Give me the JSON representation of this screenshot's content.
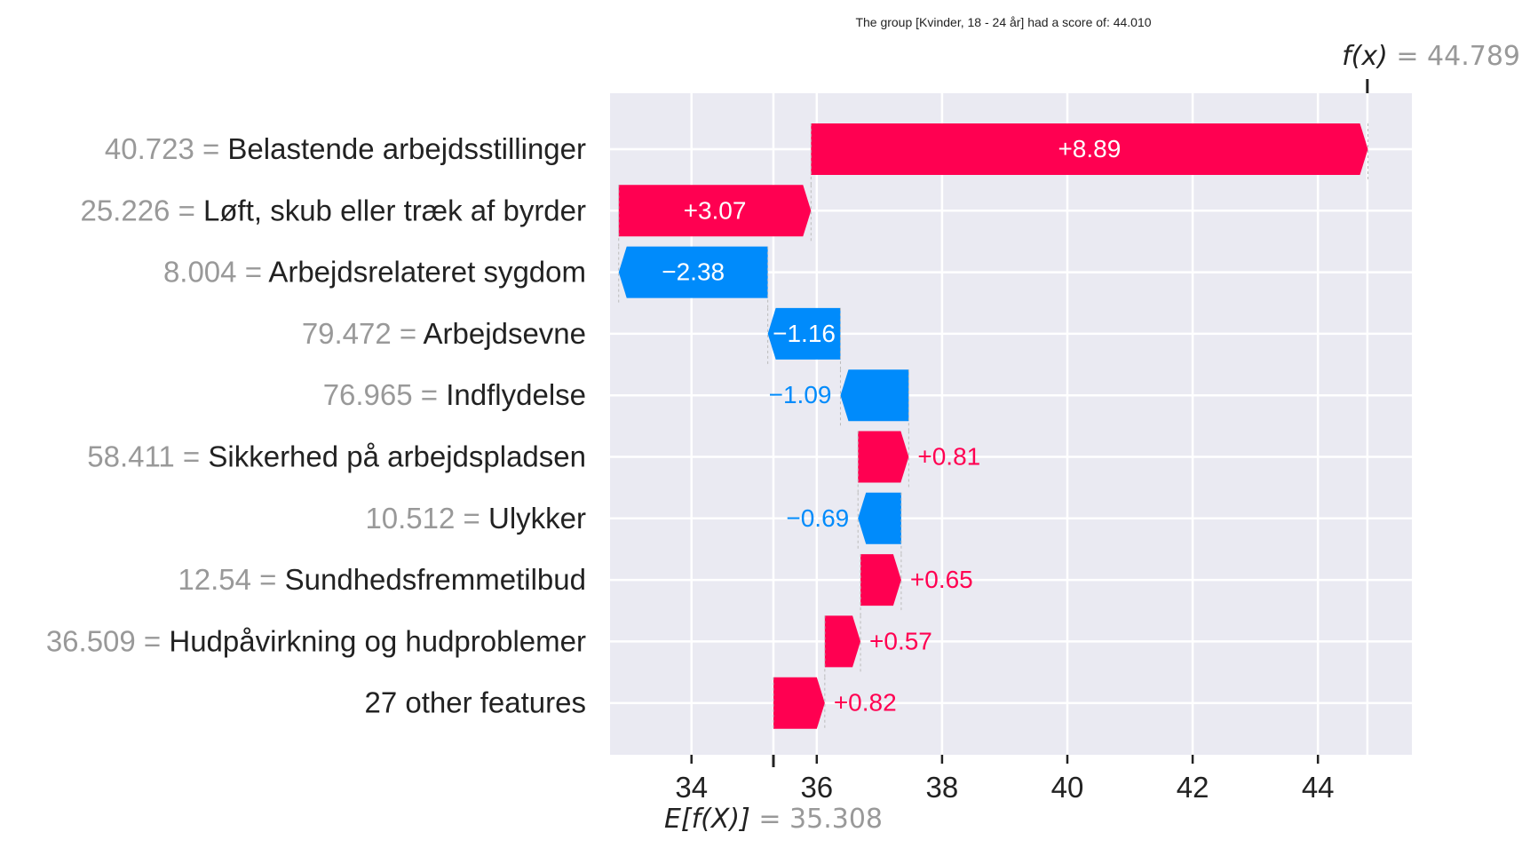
{
  "chart_data": {
    "type": "waterfall",
    "title": "The group [Kvinder, 18 - 24 år] had a score of: 44.010",
    "base_value": 35.308,
    "base_label_prefix": "E[f(X)]",
    "base_label_value": "= 35.308",
    "final_value": 44.789,
    "final_label_prefix": "f(x)",
    "final_label_value": "= 44.789",
    "xlim": [
      32.7,
      45.5
    ],
    "xticks": [
      34,
      36,
      38,
      40,
      42,
      44
    ],
    "grid": true,
    "colors": {
      "positive": "#ff0051",
      "negative": "#008bfb",
      "background": "#eaeaf2",
      "value_text": "#999999",
      "name_text": "#222222"
    },
    "features": [
      {
        "value": "40.723",
        "name": "Belastende arbejdsstillinger",
        "contribution": 8.89,
        "label": "+8.89"
      },
      {
        "value": "25.226",
        "name": "Løft, skub eller træk af byrder",
        "contribution": 3.07,
        "label": "+3.07"
      },
      {
        "value": "8.004",
        "name": "Arbejdsrelateret sygdom",
        "contribution": -2.38,
        "label": "−2.38"
      },
      {
        "value": "79.472",
        "name": "Arbejdsevne",
        "contribution": -1.16,
        "label": "−1.16"
      },
      {
        "value": "76.965",
        "name": "Indflydelse",
        "contribution": -1.09,
        "label": "−1.09"
      },
      {
        "value": "58.411",
        "name": "Sikkerhed på arbejdspladsen",
        "contribution": 0.81,
        "label": "+0.81"
      },
      {
        "value": "10.512",
        "name": "Ulykker",
        "contribution": -0.69,
        "label": "−0.69"
      },
      {
        "value": "12.54",
        "name": "Sundhedsfremmetilbud",
        "contribution": 0.65,
        "label": "+0.65"
      },
      {
        "value": "36.509",
        "name": "Hudpåvirkning og hudproblemer",
        "contribution": 0.57,
        "label": "+0.57"
      },
      {
        "value": "",
        "name": "27 other features",
        "contribution": 0.82,
        "label": "+0.82"
      }
    ]
  }
}
